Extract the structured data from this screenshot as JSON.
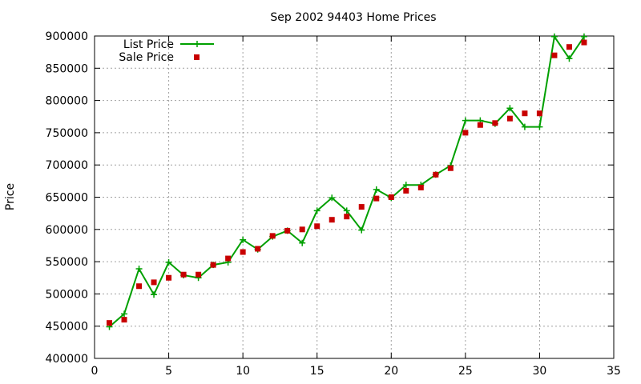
{
  "chart_data": {
    "type": "line",
    "title": "Sep 2002 94403 Home Prices",
    "xlabel": "",
    "ylabel": "Price",
    "xlim": [
      0,
      35
    ],
    "ylim": [
      400000,
      900000
    ],
    "x_ticks": [
      0,
      5,
      10,
      15,
      20,
      25,
      30,
      35
    ],
    "y_ticks": [
      400000,
      450000,
      500000,
      550000,
      600000,
      650000,
      700000,
      750000,
      800000,
      850000,
      900000
    ],
    "grid": true,
    "legend_position": "top-left",
    "series": [
      {
        "name": "List Price",
        "style": "line-with-plus-markers",
        "color": "#00a000",
        "x": [
          1,
          2,
          3,
          4,
          5,
          6,
          7,
          8,
          9,
          10,
          11,
          12,
          13,
          14,
          15,
          16,
          17,
          18,
          19,
          20,
          21,
          22,
          23,
          24,
          25,
          26,
          27,
          28,
          29,
          30,
          31,
          32,
          33
        ],
        "values": [
          449000,
          469000,
          539000,
          499000,
          549000,
          529000,
          525000,
          545000,
          549000,
          584000,
          569000,
          589000,
          598000,
          579000,
          629000,
          649000,
          629000,
          599000,
          662000,
          649000,
          669000,
          669000,
          685000,
          699000,
          769000,
          769000,
          764000,
          788000,
          759000,
          759000,
          899000,
          865000,
          899000
        ]
      },
      {
        "name": "Sale Price",
        "style": "square-markers",
        "color": "#c80000",
        "x": [
          1,
          2,
          3,
          4,
          5,
          6,
          7,
          8,
          9,
          10,
          11,
          12,
          13,
          14,
          15,
          16,
          17,
          18,
          19,
          20,
          21,
          22,
          23,
          24,
          25,
          26,
          27,
          28,
          29,
          30,
          31,
          32,
          33
        ],
        "values": [
          455000,
          460000,
          512000,
          518000,
          525000,
          530000,
          530000,
          545000,
          555000,
          565000,
          570000,
          590000,
          598000,
          600000,
          605000,
          615000,
          620000,
          635000,
          648000,
          650000,
          660000,
          665000,
          685000,
          695000,
          750000,
          762000,
          765000,
          772000,
          780000,
          780000,
          870000,
          883000,
          890000
        ]
      }
    ]
  }
}
